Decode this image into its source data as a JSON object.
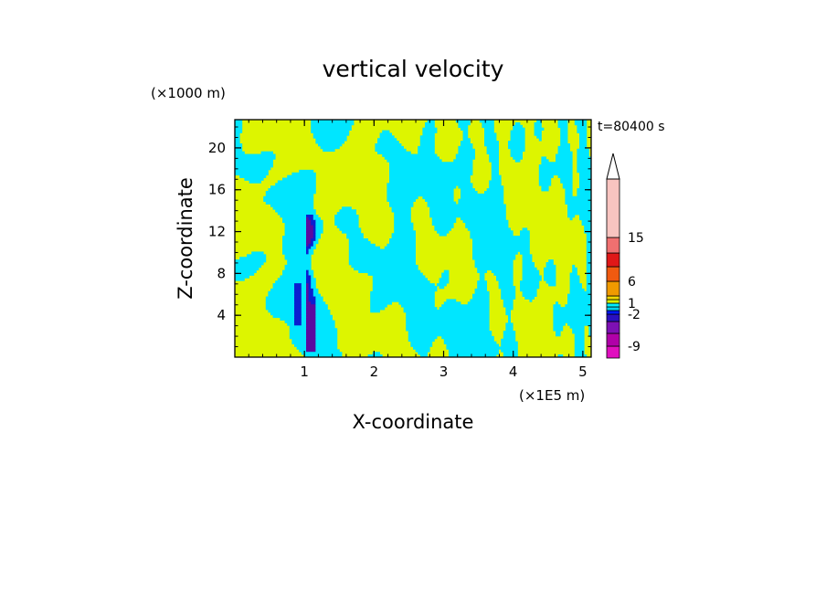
{
  "chart_data": {
    "type": "heatmap",
    "title": "vertical velocity",
    "xlabel": "X-coordinate",
    "ylabel": "Z-coordinate",
    "x_unit": "(×1E5 m)",
    "y_unit": "(×1000 m)",
    "time_label": "t=80400 s",
    "xlim": [
      0,
      5.12
    ],
    "ylim": [
      0,
      22.7
    ],
    "x_ticks": [
      1,
      2,
      3,
      4,
      5
    ],
    "x_tick_labels": [
      "1",
      "2",
      "3",
      "4",
      "5"
    ],
    "y_ticks": [
      4,
      8,
      12,
      16,
      20
    ],
    "y_tick_labels": [
      "4",
      "8",
      "12",
      "16",
      "20"
    ],
    "field_colors": {
      "positive": "#ddf500",
      "negative": "#00e6ff",
      "strong_negative": "#0a1fd0",
      "strongest_negative": "#5a0aa0"
    },
    "colorbar": {
      "levels": [
        -12,
        -9,
        -6,
        -3,
        -2,
        -1,
        0,
        1,
        2,
        3,
        6,
        9,
        12,
        15,
        20
      ],
      "colors": [
        "#e00fbf",
        "#b000a8",
        "#7d10b4",
        "#2a10c0",
        "#0018ff",
        "#00d2f0",
        "#00f0ff",
        "#d8f200",
        "#f2d800",
        "#f09a00",
        "#f05a10",
        "#e01818",
        "#f07070",
        "#f8c4c0"
      ],
      "tick_labels": [
        "-9",
        "-2",
        "1",
        "6",
        "15"
      ],
      "tick_values": [
        -9,
        -2,
        1,
        6,
        15
      ],
      "extend": "max"
    }
  }
}
